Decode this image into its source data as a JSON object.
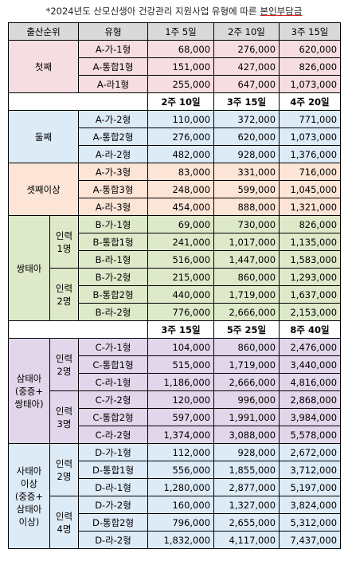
{
  "title": [
    "*2024년도 산모신생아 건강관리 지원사업 유형에 따른",
    "본인부담금"
  ],
  "header": {
    "birth_order": "출산순위",
    "type": "유형"
  },
  "sections": [
    {
      "periods": [
        "1주 5일",
        "2주 10일",
        "3주 15일"
      ],
      "groups": [
        {
          "label": "첫째",
          "rows": [
            {
              "type": "A-가-1형",
              "values": [
                "68,000",
                "276,000",
                "620,000"
              ]
            },
            {
              "type": "A-통합1형",
              "values": [
                "151,000",
                "427,000",
                "826,000"
              ]
            },
            {
              "type": "A-라1형",
              "values": [
                "255,000",
                "647,000",
                "1,073,000"
              ]
            }
          ]
        }
      ]
    },
    {
      "periods": [
        "2주 10일",
        "3주 15일",
        "4주 20일"
      ],
      "groups": [
        {
          "label": "둘째",
          "rows": [
            {
              "type": "A-가-2형",
              "values": [
                "110,000",
                "372,000",
                "771,000"
              ]
            },
            {
              "type": "A-통합2형",
              "values": [
                "276,000",
                "620,000",
                "1,073,000"
              ]
            },
            {
              "type": "A-라-2형",
              "values": [
                "482,000",
                "928,000",
                "1,376,000"
              ]
            }
          ]
        },
        {
          "label": "셋째이상",
          "rows": [
            {
              "type": "A-가-3형",
              "values": [
                "83,000",
                "331,000",
                "716,000"
              ]
            },
            {
              "type": "A-통합3형",
              "values": [
                "248,000",
                "599,000",
                "1,045,000"
              ]
            },
            {
              "type": "A-라-3형",
              "values": [
                "454,000",
                "888,000",
                "1,321,000"
              ]
            }
          ]
        },
        {
          "label": "쌍태아",
          "subgroups": [
            {
              "label": "인력\n1명",
              "rows": [
                {
                  "type": "B-가-1형",
                  "values": [
                    "69,000",
                    "730,000",
                    "826,000"
                  ]
                },
                {
                  "type": "B-통합1형",
                  "values": [
                    "241,000",
                    "1,017,000",
                    "1,135,000"
                  ]
                },
                {
                  "type": "B-라-1형",
                  "values": [
                    "516,000",
                    "1,447,000",
                    "1,583,000"
                  ]
                }
              ]
            },
            {
              "label": "인력\n2명",
              "rows": [
                {
                  "type": "B-가-2형",
                  "values": [
                    "215,000",
                    "860,000",
                    "1,293,000"
                  ]
                },
                {
                  "type": "B-통합2형",
                  "values": [
                    "440,000",
                    "1,719,000",
                    "1,637,000"
                  ]
                },
                {
                  "type": "B-라-2형",
                  "values": [
                    "776,000",
                    "2,666,000",
                    "2,153,000"
                  ]
                }
              ]
            }
          ]
        }
      ]
    },
    {
      "periods": [
        "3주 15일",
        "5주 25일",
        "8주 40일"
      ],
      "groups": [
        {
          "label": "삼태아\n(중증+\n쌍태아)",
          "subgroups": [
            {
              "label": "인력\n2명",
              "rows": [
                {
                  "type": "C-가-1형",
                  "values": [
                    "104,000",
                    "860,000",
                    "2,476,000"
                  ]
                },
                {
                  "type": "C-통합1형",
                  "values": [
                    "515,000",
                    "1,719,000",
                    "3,440,000"
                  ]
                },
                {
                  "type": "C-라-1형",
                  "values": [
                    "1,186,000",
                    "2,666,000",
                    "4,816,000"
                  ]
                }
              ]
            },
            {
              "label": "인력\n3명",
              "rows": [
                {
                  "type": "C-가-2형",
                  "values": [
                    "120,000",
                    "996,000",
                    "2,868,000"
                  ]
                },
                {
                  "type": "C-통합2형",
                  "values": [
                    "597,000",
                    "1,991,000",
                    "3,984,000"
                  ]
                },
                {
                  "type": "C-라-2형",
                  "values": [
                    "1,374,000",
                    "3,088,000",
                    "5,578,000"
                  ]
                }
              ]
            }
          ]
        },
        {
          "label": "사태아\n이상\n(중증+\n삼태아\n이상)",
          "subgroups": [
            {
              "label": "인력\n2명",
              "rows": [
                {
                  "type": "D-가-1형",
                  "values": [
                    "112,000",
                    "928,000",
                    "2,672,000"
                  ]
                },
                {
                  "type": "D-통합1형",
                  "values": [
                    "556,000",
                    "1,855,000",
                    "3,712,000"
                  ]
                },
                {
                  "type": "D-라-1형",
                  "values": [
                    "1,280,000",
                    "2,877,000",
                    "5,197,000"
                  ]
                }
              ]
            },
            {
              "label": "인력\n4명",
              "rows": [
                {
                  "type": "D-가-2형",
                  "values": [
                    "160,000",
                    "1,327,000",
                    "3,824,000"
                  ]
                },
                {
                  "type": "D-통합2형",
                  "values": [
                    "796,000",
                    "2,655,000",
                    "5,312,000"
                  ]
                },
                {
                  "type": "D-라-2형",
                  "values": [
                    "1,832,000",
                    "4,117,000",
                    "7,437,000"
                  ]
                }
              ]
            }
          ]
        }
      ]
    }
  ]
}
